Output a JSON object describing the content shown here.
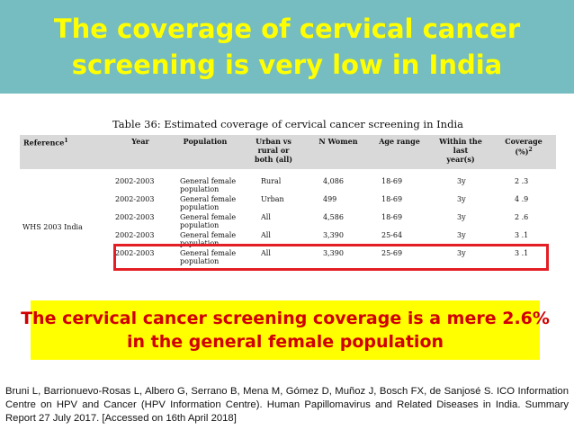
{
  "title": {
    "line1": "The coverage of cervical cancer",
    "line2": "screening is very low in India"
  },
  "table": {
    "caption": "Table 36: Estimated coverage of cervical cancer screening in India",
    "headers": {
      "reference": "Reference",
      "reference_sup": "1",
      "year": "Year",
      "population": "Population",
      "urban_line1": "Urban vs",
      "urban_line2": "rural or",
      "urban_line3": "both (all)",
      "n_women": "N Women",
      "age_range": "Age range",
      "within_line1": "Within the",
      "within_line2": "last",
      "within_line3": "year(s)",
      "coverage_line1": "Coverage",
      "coverage_line2": "(%)",
      "coverage_sup": "2"
    },
    "reference_value": "WHS 2003 India",
    "rows": [
      {
        "year": "2002-2003",
        "pop1": "General   female",
        "pop2": "population",
        "area": "Rural",
        "n": "4,086",
        "age": "18-69",
        "within": "3y",
        "coverage": "2 .3"
      },
      {
        "year": "2002-2003",
        "pop1": "General   female",
        "pop2": "population",
        "area": "Urban",
        "n": "499",
        "age": "18-69",
        "within": "3y",
        "coverage": "4 .9"
      },
      {
        "year": "2002-2003",
        "pop1": "General   female",
        "pop2": "population",
        "area": "All",
        "n": "4,586",
        "age": "18-69",
        "within": "3y",
        "coverage": "2 .6"
      },
      {
        "year": "2002-2003",
        "pop1": "General   female",
        "pop2": "population",
        "area": "All",
        "n": "3,390",
        "age": "25-64",
        "within": "3y",
        "coverage": "3 .1"
      },
      {
        "year": "2002-2003",
        "pop1": "General   female",
        "pop2": "population",
        "area": "All",
        "n": "3,390",
        "age": "25-69",
        "within": "3y",
        "coverage": "3 .1"
      }
    ]
  },
  "highlight": {
    "line1": "The cervical cancer screening coverage is a mere 2.6%",
    "line2": "in the general female population"
  },
  "citation": "Bruni L, Barrionuevo-Rosas L, Albero G, Serrano B, Mena M, Gómez D, Muñoz J, Bosch FX, de Sanjosé S. ICO Information Centre on HPV and Cancer (HPV Information Centre). Human Papillomavirus and Related Diseases in India. Summary Report 27 July 2017. [Accessed on 16th April 2018]",
  "colors": {
    "banner_bg": "#75bdc0",
    "title_text": "#ffff00",
    "highlight_bg": "#ffff00",
    "highlight_text": "#d00000",
    "box_border": "#e31e24"
  }
}
